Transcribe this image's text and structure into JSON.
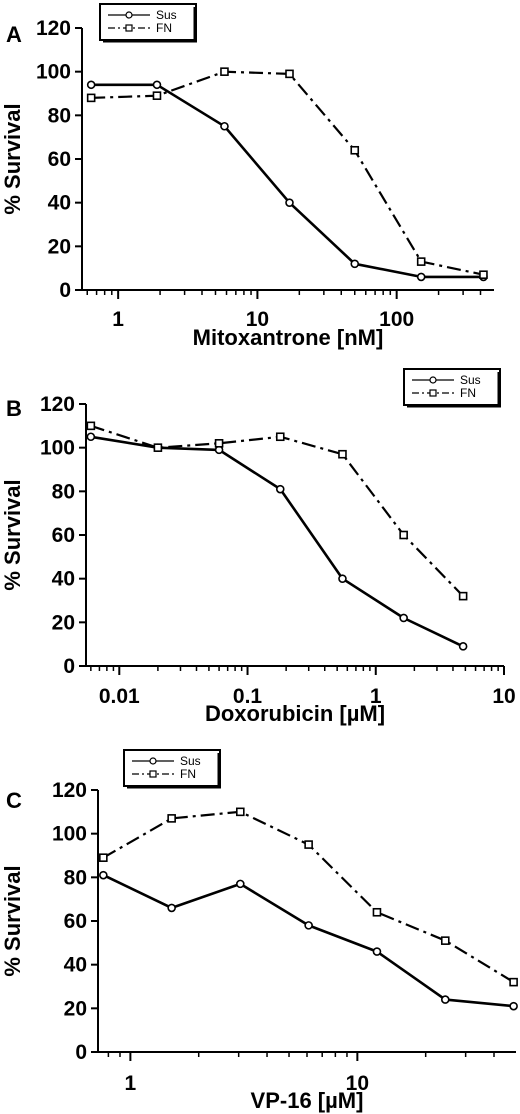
{
  "chart_data": [
    {
      "panel_label": "A",
      "type": "line",
      "x_scale": "log",
      "xlabel": "Mitoxantrone [nM]",
      "ylabel": "% Survival",
      "xlim": [
        0.55,
        500
      ],
      "ylim": [
        0,
        120
      ],
      "x_ticks": [
        1,
        10,
        100
      ],
      "x_tick_labels": [
        "1",
        "10",
        "100"
      ],
      "y_ticks": [
        0,
        20,
        40,
        60,
        80,
        100,
        120
      ],
      "y_tick_labels": [
        "0",
        "20",
        "40",
        "60",
        "80",
        "100",
        "120"
      ],
      "legend_position": "top-left",
      "series": [
        {
          "name": "Sus",
          "marker": "circle",
          "line_style": "solid",
          "x": [
            0.64,
            1.9,
            5.8,
            17,
            50,
            150,
            420
          ],
          "y": [
            94,
            94,
            75,
            40,
            12,
            6,
            6
          ]
        },
        {
          "name": "FN",
          "marker": "square",
          "line_style": "dashdot",
          "x": [
            0.64,
            1.9,
            5.8,
            17,
            50,
            150,
            420
          ],
          "y": [
            88,
            89,
            100,
            99,
            64,
            13,
            7
          ]
        }
      ]
    },
    {
      "panel_label": "B",
      "type": "line",
      "x_scale": "log",
      "xlabel": "Doxorubicin [µM]",
      "ylabel": "% Survival",
      "xlim": [
        0.0055,
        10
      ],
      "ylim": [
        0,
        120
      ],
      "x_ticks": [
        0.01,
        0.1,
        1,
        10
      ],
      "x_tick_labels": [
        "0.01",
        "0.1",
        "1",
        "10"
      ],
      "y_ticks": [
        0,
        20,
        40,
        60,
        80,
        100,
        120
      ],
      "y_tick_labels": [
        "0",
        "20",
        "40",
        "60",
        "80",
        "100",
        "120"
      ],
      "legend_position": "top-right",
      "series": [
        {
          "name": "Sus",
          "marker": "circle",
          "line_style": "solid",
          "x": [
            0.006,
            0.02,
            0.06,
            0.18,
            0.55,
            1.65,
            4.8
          ],
          "y": [
            105,
            100,
            99,
            81,
            40,
            22,
            9
          ]
        },
        {
          "name": "FN",
          "marker": "square",
          "line_style": "dashdot",
          "x": [
            0.006,
            0.02,
            0.06,
            0.18,
            0.55,
            1.65,
            4.8
          ],
          "y": [
            110,
            100,
            102,
            105,
            97,
            60,
            32
          ]
        }
      ]
    },
    {
      "panel_label": "C",
      "type": "line",
      "x_scale": "log",
      "xlabel": "VP-16 [µM]",
      "ylabel": "% Survival",
      "xlim": [
        0.72,
        50
      ],
      "ylim": [
        0,
        120
      ],
      "x_ticks": [
        1,
        10
      ],
      "x_tick_labels": [
        "1",
        "10"
      ],
      "y_ticks": [
        0,
        20,
        40,
        60,
        80,
        100,
        120
      ],
      "y_tick_labels": [
        "0",
        "20",
        "40",
        "60",
        "80",
        "100",
        "120"
      ],
      "legend_position": "top-left",
      "series": [
        {
          "name": "Sus",
          "marker": "circle",
          "line_style": "solid",
          "x": [
            0.76,
            1.52,
            3.05,
            6.1,
            12.2,
            24.4,
            48.8
          ],
          "y": [
            81,
            66,
            77,
            58,
            46,
            24,
            21
          ]
        },
        {
          "name": "FN",
          "marker": "square",
          "line_style": "dashdot",
          "x": [
            0.76,
            1.52,
            3.05,
            6.1,
            12.2,
            24.4,
            48.8
          ],
          "y": [
            89,
            107,
            110,
            95,
            64,
            51,
            32
          ]
        }
      ]
    }
  ]
}
